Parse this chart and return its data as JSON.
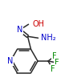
{
  "bg_color": "#ffffff",
  "bond_color": "#2a2a2a",
  "atom_colors": {
    "N": "#0000cc",
    "O": "#cc0000",
    "F": "#008800",
    "C": "#2a2a2a"
  },
  "fig_width": 0.91,
  "fig_height": 1.02,
  "dpi": 100,
  "lw": 1.1
}
